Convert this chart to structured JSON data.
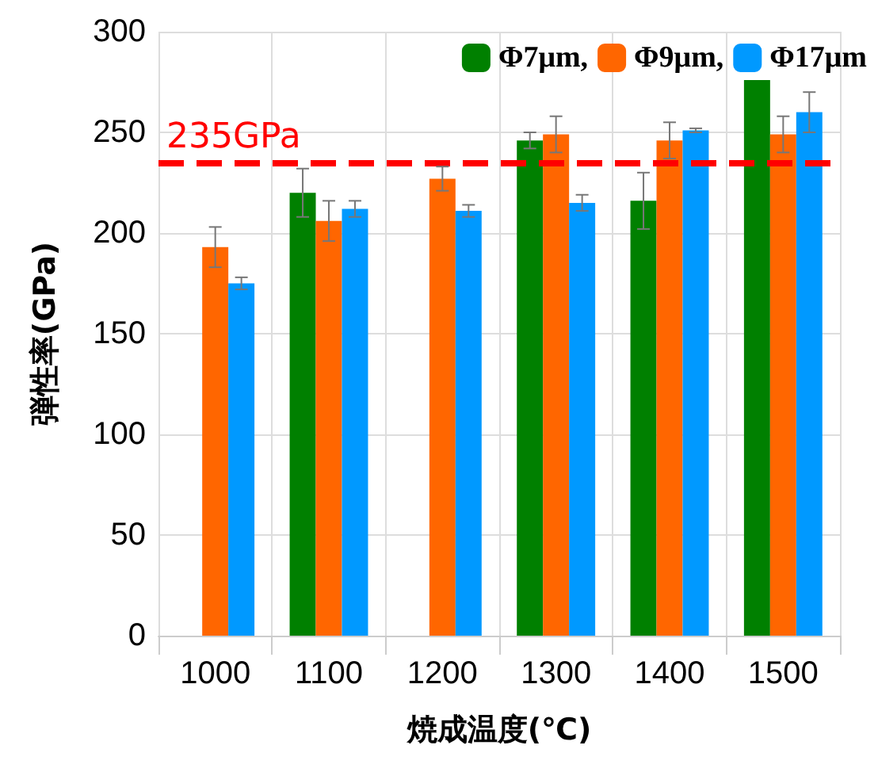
{
  "chart_data": {
    "type": "bar",
    "xlabel": "焼成温度(℃)",
    "ylabel": "弾性率(GPa)",
    "categories": [
      "1000",
      "1100",
      "1200",
      "1300",
      "1400",
      "1500"
    ],
    "series": [
      {
        "name": "Φ7μm,",
        "color": "#008000",
        "values": [
          null,
          220,
          null,
          246,
          216,
          276
        ],
        "errors": [
          null,
          12,
          null,
          4,
          14,
          null
        ]
      },
      {
        "name": "Φ9μm,",
        "color": "#ff6600",
        "values": [
          193,
          206,
          227,
          249,
          246,
          249
        ],
        "errors": [
          10,
          10,
          6,
          9,
          9,
          9
        ]
      },
      {
        "name": "Φ17μm",
        "color": "#0099ff",
        "values": [
          175,
          212,
          211,
          215,
          251,
          260
        ],
        "errors": [
          3,
          4,
          3,
          4,
          1,
          10
        ]
      }
    ],
    "ylim": [
      0,
      300
    ],
    "yticks": [
      0,
      50,
      100,
      150,
      200,
      250,
      300
    ],
    "grid": true,
    "legend": "top right",
    "ref_lines": [
      {
        "axis": "y",
        "value": 235,
        "label": "235GPa",
        "color": "#ff0000",
        "line_style": "dashed"
      }
    ]
  }
}
